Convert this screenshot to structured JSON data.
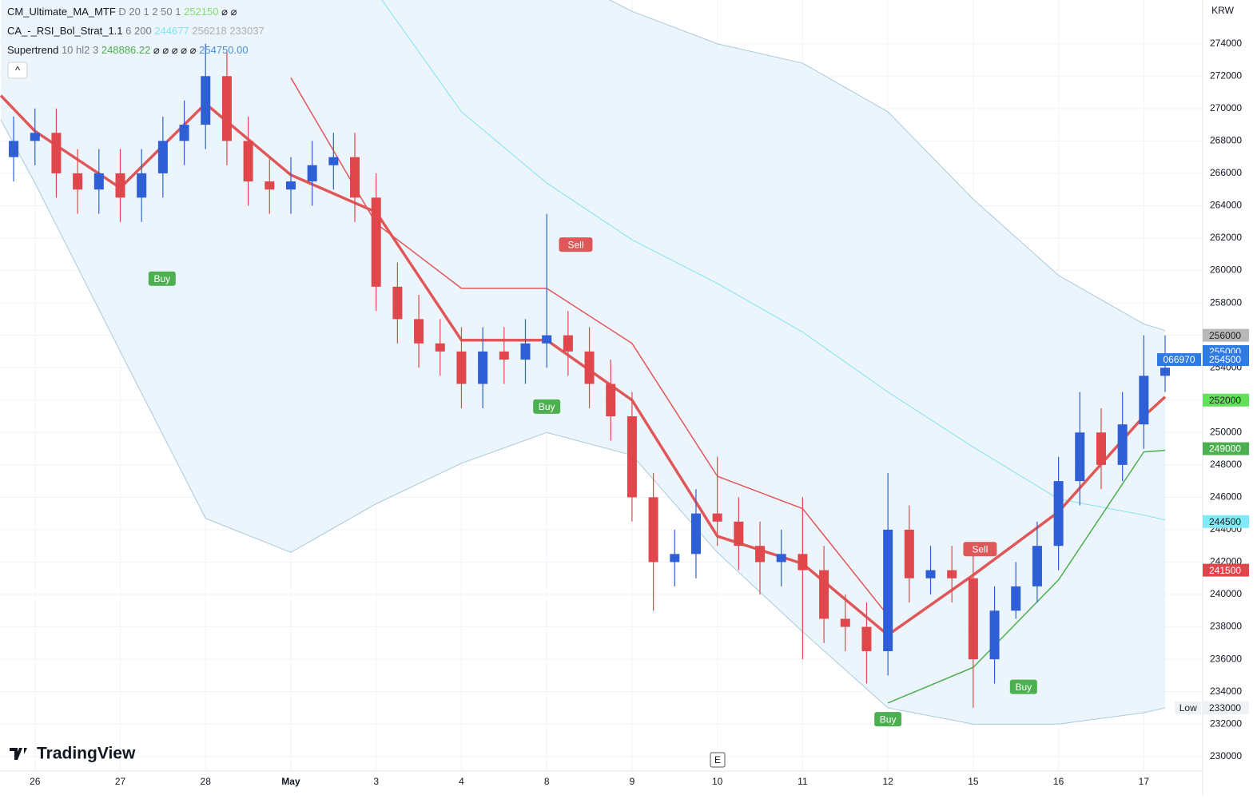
{
  "chart_data": {
    "type": "candlestick",
    "currency": "KRW",
    "logo": "TradingView",
    "event_marker": "E",
    "collapse_button": "^",
    "indicators": [
      {
        "name": "CM_Ultimate_MA_MTF",
        "params": "D 20 1 2 50 1",
        "values": [
          252150
        ],
        "value_colors": [
          "#7ee06a"
        ],
        "extra": "⌀ ⌀"
      },
      {
        "name": "CA_-_RSI_Bol_Strat_1.1",
        "params": "6 200",
        "values": [
          244677,
          256218,
          233037
        ],
        "value_colors": [
          "#7fe3ee",
          "#b0b0b0",
          "#b0b0b0"
        ]
      },
      {
        "name": "Supertrend",
        "params": "10 hl2 3",
        "values": [
          248886.22,
          {
            "value": 254750,
            "label": "254750.00"
          }
        ],
        "value_colors": [
          "#4caf50",
          "#4a90d9"
        ],
        "extra": "⌀ ⌀ ⌀ ⌀ ⌀"
      }
    ],
    "xlim": [
      -0.41,
      13.69
    ],
    "xticks": [
      {
        "value": 0,
        "label": "26"
      },
      {
        "value": 1,
        "label": "27"
      },
      {
        "value": 2,
        "label": "28"
      },
      {
        "value": 3,
        "label": "May"
      },
      {
        "value": 4,
        "label": "3"
      },
      {
        "value": 5,
        "label": "4"
      },
      {
        "value": 6,
        "label": "8"
      },
      {
        "value": 7,
        "label": "9"
      },
      {
        "value": 8,
        "label": "10"
      },
      {
        "value": 9,
        "label": "11"
      },
      {
        "value": 10,
        "label": "12"
      },
      {
        "value": 11,
        "label": "15"
      },
      {
        "value": 12,
        "label": "16"
      },
      {
        "value": 13,
        "label": "17"
      }
    ],
    "ylim": [
      229100,
      276700
    ],
    "yticks": [
      230000,
      232000,
      234000,
      236000,
      238000,
      240000,
      242000,
      244000,
      246000,
      248000,
      250000,
      252000,
      254000,
      256000,
      258000,
      260000,
      262000,
      264000,
      266000,
      268000,
      270000,
      272000,
      274000
    ],
    "grid": true,
    "up_color": "#2f5fd6",
    "down_color": "#e0474c",
    "x": [
      -0.25,
      0,
      0.25,
      0.5,
      0.75,
      1,
      1.25,
      1.5,
      1.75,
      2,
      2.25,
      2.5,
      2.75,
      3,
      3.25,
      3.5,
      3.75,
      4,
      4.25,
      4.5,
      4.75,
      5,
      5.25,
      5.5,
      5.75,
      6,
      6.25,
      6.5,
      6.75,
      7,
      7.25,
      7.5,
      7.75,
      8,
      8.25,
      8.5,
      8.75,
      9,
      9.25,
      9.5,
      9.75,
      10,
      10.25,
      10.5,
      10.75,
      11,
      11.25,
      11.5,
      11.75,
      12,
      12.25,
      12.5,
      12.75,
      13,
      13.25
    ],
    "open": [
      267000,
      268000,
      268500,
      266000,
      265000,
      266000,
      264500,
      266000,
      268000,
      269000,
      272000,
      268000,
      265500,
      265000,
      265500,
      266500,
      267000,
      264500,
      259000,
      257000,
      255500,
      255000,
      253000,
      255000,
      254500,
      255500,
      256000,
      255000,
      253000,
      251000,
      246000,
      242000,
      242500,
      245000,
      244500,
      243000,
      242000,
      242500,
      241500,
      238500,
      238000,
      236500,
      244000,
      241000,
      241500,
      241000,
      236000,
      239000,
      240500,
      243000,
      247000,
      250000,
      248000,
      250500,
      253500
    ],
    "high": [
      269500,
      270000,
      270000,
      267500,
      267500,
      267500,
      267500,
      269500,
      270500,
      274000,
      273500,
      269500,
      267000,
      267000,
      268000,
      268500,
      268500,
      266000,
      260500,
      258500,
      257000,
      256500,
      256500,
      256500,
      257000,
      263500,
      257500,
      256500,
      254500,
      252500,
      247500,
      244000,
      246500,
      248500,
      246000,
      244500,
      244000,
      246000,
      243000,
      240000,
      239500,
      247500,
      245500,
      243000,
      243000,
      242500,
      240500,
      242000,
      244500,
      248500,
      252500,
      251500,
      252500,
      256000,
      256000
    ],
    "low": [
      265500,
      266500,
      264500,
      263500,
      263500,
      263000,
      263000,
      264500,
      266500,
      267500,
      266500,
      264000,
      263500,
      263500,
      264000,
      265000,
      263000,
      257500,
      255500,
      254000,
      253500,
      251500,
      251500,
      253000,
      253000,
      254000,
      253500,
      251500,
      249500,
      244500,
      239000,
      240500,
      241000,
      243000,
      241500,
      240000,
      240500,
      236000,
      237000,
      236500,
      234500,
      235000,
      239500,
      240000,
      239500,
      233000,
      234500,
      238500,
      239500,
      241500,
      245500,
      246500,
      247000,
      249000,
      252500
    ],
    "close": [
      268000,
      268500,
      266000,
      265000,
      266000,
      264500,
      266000,
      268000,
      269000,
      272000,
      268000,
      265500,
      265000,
      265500,
      266500,
      267000,
      264500,
      259000,
      257000,
      255500,
      255000,
      253000,
      255000,
      254500,
      255500,
      256000,
      255000,
      253000,
      251000,
      246000,
      242000,
      242500,
      245000,
      244500,
      243000,
      242000,
      242500,
      241500,
      238500,
      238000,
      236500,
      244000,
      241000,
      241500,
      241000,
      236000,
      239000,
      240500,
      243000,
      247000,
      250000,
      248000,
      250500,
      253500,
      254000
    ],
    "overlay_x": [
      -0.4,
      0,
      1,
      2,
      3,
      4,
      5,
      6,
      7,
      8,
      9,
      10,
      11,
      12,
      13,
      13.25
    ],
    "overlays": [
      {
        "color": "#a9c9da",
        "width": 1,
        "values": [
          null,
          null,
          null,
          null,
          null,
          null,
          null,
          278700,
          276000,
          274000,
          272800,
          269800,
          264400,
          259700,
          256700,
          256300
        ]
      },
      {
        "color": "#a9c9da",
        "width": 1,
        "values": [
          269300,
          265400,
          255000,
          244700,
          242600,
          245600,
          248100,
          250000,
          248600,
          242600,
          237700,
          233000,
          232000,
          232000,
          232700,
          233000
        ]
      },
      {
        "color": "#7fe3ee",
        "width": 1,
        "values": [
          null,
          null,
          null,
          null,
          null,
          277200,
          269800,
          265400,
          261900,
          259200,
          256200,
          252500,
          249100,
          245900,
          244900,
          244600
        ]
      },
      {
        "color": "#e0575a",
        "width": 1.5,
        "values": [
          null,
          null,
          null,
          null,
          271900,
          262900,
          258900,
          258900,
          255500,
          247300,
          245300,
          238700,
          null,
          null,
          null,
          null
        ]
      },
      {
        "color": "#4caf50",
        "width": 1.5,
        "values": [
          null,
          null,
          null,
          null,
          null,
          null,
          null,
          null,
          null,
          null,
          null,
          233300,
          235500,
          240900,
          248800,
          248900
        ]
      },
      {
        "color": "#e0575a",
        "width": 3.5,
        "values": [
          270800,
          268600,
          265100,
          270300,
          265900,
          263600,
          255700,
          255700,
          252000,
          243600,
          241900,
          237500,
          241200,
          245100,
          251000,
          252200
        ]
      }
    ],
    "signals": [
      {
        "label": "Buy",
        "x": 1.49,
        "price": 259500,
        "color": "#4caf50"
      },
      {
        "label": "Sell",
        "x": 6.34,
        "price": 261600,
        "color": "#e0575a"
      },
      {
        "label": "Buy",
        "x": 6.0,
        "price": 251600,
        "color": "#4caf50"
      },
      {
        "label": "Sell",
        "x": 11.08,
        "price": 242800,
        "color": "#e0575a"
      },
      {
        "label": "Buy",
        "x": 11.59,
        "price": 234300,
        "color": "#4caf50"
      },
      {
        "label": "Buy",
        "x": 10.0,
        "price": 232300,
        "color": "#4caf50"
      }
    ],
    "price_tags": [
      {
        "value": 256000,
        "color": "#b8b8b8",
        "text_color": "#222"
      },
      {
        "value": 255000,
        "color": "#2f7be6",
        "text_color": "#fff"
      },
      {
        "value": 254500,
        "color": "#2f7be6",
        "text_color": "#fff",
        "note": "066970"
      },
      {
        "value": 252000,
        "color": "#63e05a",
        "text_color": "#222"
      },
      {
        "value": 249000,
        "color": "#4caf50",
        "text_color": "#fff"
      },
      {
        "value": 244500,
        "color": "#7fe9f5",
        "text_color": "#222"
      },
      {
        "value": 241500,
        "color": "#e0474c",
        "text_color": "#fff"
      },
      {
        "value": 233000,
        "color": "#b8b8b8",
        "text_color": "#222"
      },
      {
        "value": 233000,
        "color": "#eef2f7",
        "text_color": "#222",
        "note": "Low"
      }
    ]
  }
}
